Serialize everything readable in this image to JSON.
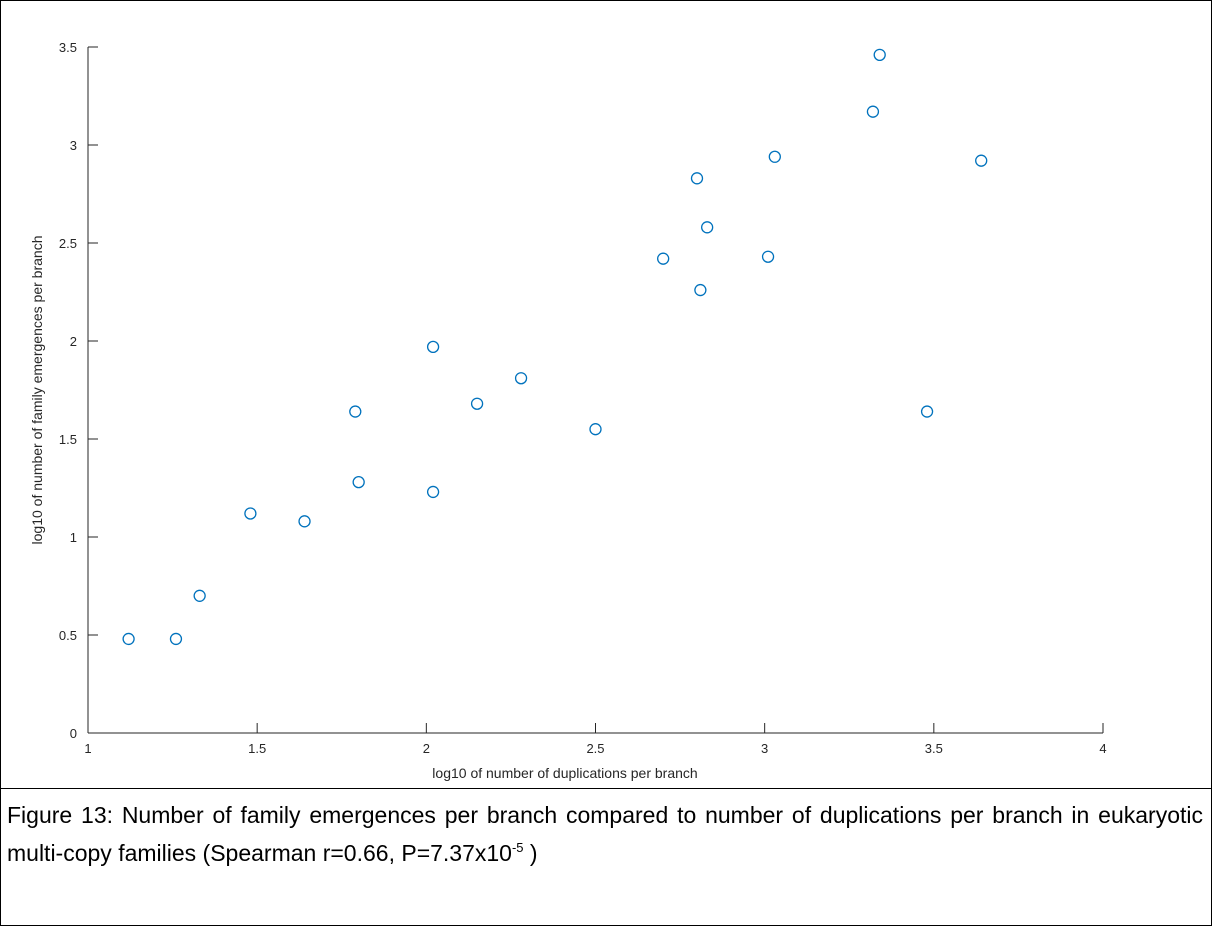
{
  "chart_data": {
    "type": "scatter",
    "xlabel": "log10 of number of duplications per branch",
    "ylabel": "log10 of number of family emergences per branch",
    "xlim": [
      1,
      4
    ],
    "ylim": [
      0,
      3.5
    ],
    "xticks": [
      "1",
      "1.5",
      "2",
      "2.5",
      "3",
      "3.5",
      "4"
    ],
    "yticks": [
      "0",
      "0.5",
      "1",
      "1.5",
      "2",
      "2.5",
      "3",
      "3.5"
    ],
    "grid": false,
    "marker_color": "#0072BD",
    "points": [
      {
        "x": 1.12,
        "y": 0.48
      },
      {
        "x": 1.26,
        "y": 0.48
      },
      {
        "x": 1.33,
        "y": 0.7
      },
      {
        "x": 1.48,
        "y": 1.12
      },
      {
        "x": 1.64,
        "y": 1.08
      },
      {
        "x": 1.79,
        "y": 1.64
      },
      {
        "x": 1.8,
        "y": 1.28
      },
      {
        "x": 2.02,
        "y": 1.23
      },
      {
        "x": 2.02,
        "y": 1.97
      },
      {
        "x": 2.15,
        "y": 1.68
      },
      {
        "x": 2.28,
        "y": 1.81
      },
      {
        "x": 2.5,
        "y": 1.55
      },
      {
        "x": 2.7,
        "y": 2.42
      },
      {
        "x": 2.8,
        "y": 2.83
      },
      {
        "x": 2.81,
        "y": 2.26
      },
      {
        "x": 2.83,
        "y": 2.58
      },
      {
        "x": 3.01,
        "y": 2.43
      },
      {
        "x": 3.03,
        "y": 2.94
      },
      {
        "x": 3.32,
        "y": 3.17
      },
      {
        "x": 3.34,
        "y": 3.46
      },
      {
        "x": 3.48,
        "y": 1.64
      },
      {
        "x": 3.64,
        "y": 2.92
      }
    ]
  },
  "caption": {
    "text": "Figure 13: Number of family emergences per branch compared to number of duplications per branch in eukaryotic multi-copy families (Spearman r=0.66, P=7.37x10",
    "superscript": "-5",
    "suffix": " )"
  }
}
